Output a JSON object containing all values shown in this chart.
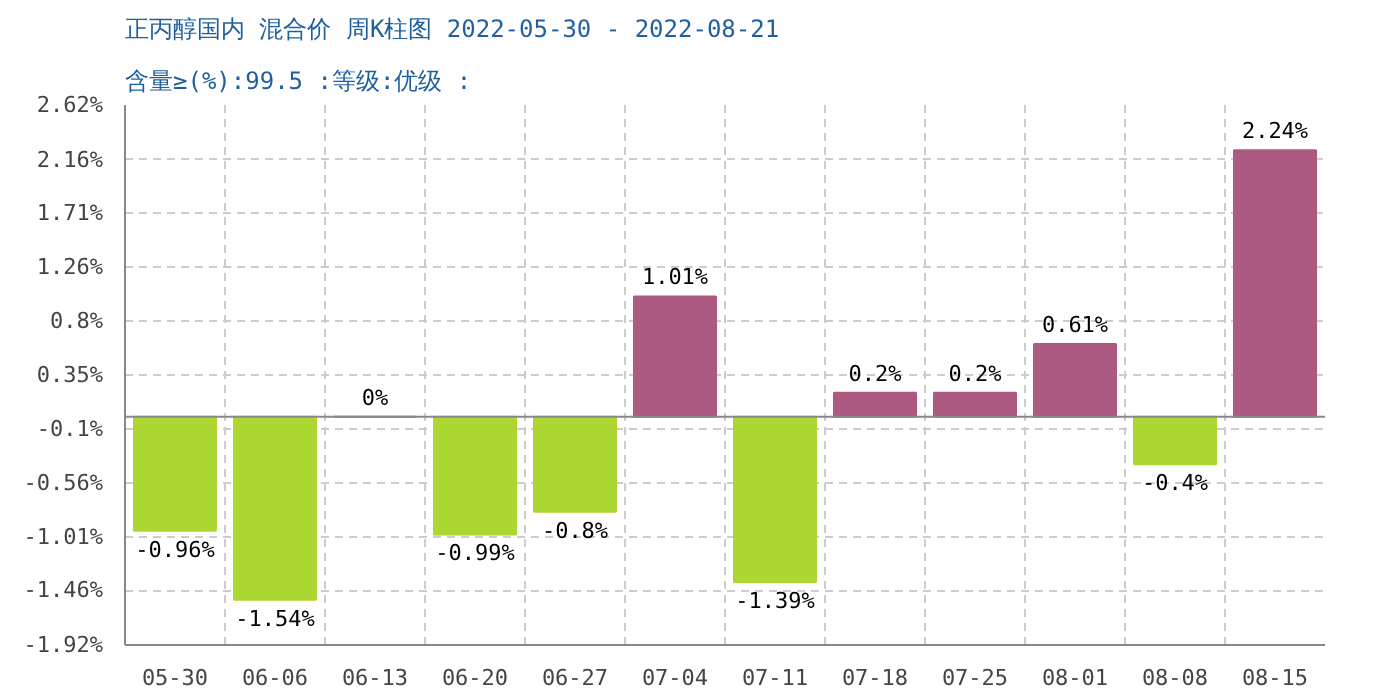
{
  "chart_data": {
    "type": "bar",
    "title": "正丙醇国内 混合价 周K柱图 2022-05-30 - 2022-08-21",
    "subtitle": "含量≥(%):99.5 :等级:优级 :",
    "categories": [
      "05-30",
      "06-06",
      "06-13",
      "06-20",
      "06-27",
      "07-04",
      "07-11",
      "07-18",
      "07-25",
      "08-01",
      "08-08",
      "08-15"
    ],
    "values": [
      -0.96,
      -1.54,
      0,
      -0.99,
      -0.8,
      1.01,
      -1.39,
      0.2,
      0.2,
      0.61,
      -0.4,
      2.24
    ],
    "colors": [
      "#acd631",
      "#acd631",
      "#ac5a82",
      "#acd631",
      "#acd631",
      "#ac5a82",
      "#acd631",
      "#ac5a82",
      "#ac5a82",
      "#ac5a82",
      "#acd631",
      "#ac5a82"
    ],
    "value_labels": [
      "-0.96%",
      "-1.54%",
      "0%",
      "-0.99%",
      "-0.8%",
      "1.01%",
      "-1.39%",
      "0.2%",
      "0.2%",
      "0.61%",
      "-0.4%",
      "2.24%"
    ],
    "ylim": [
      -1.92,
      2.62
    ],
    "yticks": [
      {
        "value": 2.62,
        "label": "2.62%"
      },
      {
        "value": 2.16,
        "label": "2.16%"
      },
      {
        "value": 1.71,
        "label": "1.71%"
      },
      {
        "value": 1.26,
        "label": "1.26%"
      },
      {
        "value": 0.8,
        "label": "0.8%"
      },
      {
        "value": 0.35,
        "label": "0.35%"
      },
      {
        "value": -0.1,
        "label": "-0.1%"
      },
      {
        "value": -0.56,
        "label": "-0.56%"
      },
      {
        "value": -1.01,
        "label": "-1.01%"
      },
      {
        "value": -1.46,
        "label": "-1.46%"
      },
      {
        "value": -1.92,
        "label": "-1.92%"
      }
    ],
    "grid": true
  }
}
